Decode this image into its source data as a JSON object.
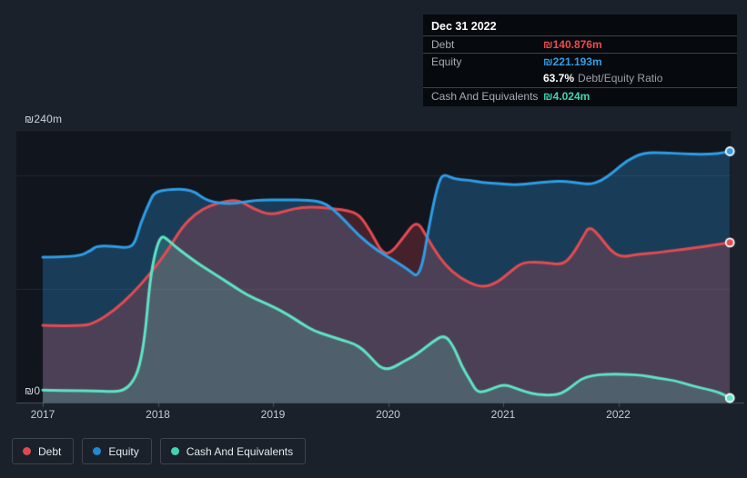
{
  "tooltip": {
    "date": "Dec 31 2022",
    "debt_label": "Debt",
    "debt_value": "₪140.876m",
    "equity_label": "Equity",
    "equity_value": "₪221.193m",
    "ratio_value": "63.7%",
    "ratio_label": "Debt/Equity Ratio",
    "cash_label": "Cash And Equivalents",
    "cash_value": "₪4.024m"
  },
  "y_axis": {
    "top_label": "₪240m",
    "zero_label": "₪0"
  },
  "legend": {
    "items": [
      {
        "label": "Debt",
        "color": "#dd4a4e"
      },
      {
        "label": "Equity",
        "color": "#2188d2"
      },
      {
        "label": "Cash And Equivalents",
        "color": "#41d2b2"
      }
    ]
  },
  "colors": {
    "debt_line": "#e24b51",
    "equity_line": "#2e9de6",
    "cash_line": "#5fe3c4",
    "plot_bg": "#10151e",
    "page_bg": "#1a212b",
    "grid": "rgba(255,255,255,0.08)",
    "axis": "rgba(160,170,185,0.35)"
  },
  "chart_data": {
    "type": "area",
    "title": "Debt to Equity History and Analysis",
    "x_ticks": [
      "2017",
      "2018",
      "2019",
      "2020",
      "2021",
      "2022"
    ],
    "x_range": [
      2017.0,
      2022.97
    ],
    "ylim": [
      0,
      240
    ],
    "y_unit": "₪m",
    "y_gridline_values": [
      240,
      200,
      100
    ],
    "grid": true,
    "legend_position": "bottom-left",
    "series": [
      {
        "name": "Equity",
        "color": "#2e9de6",
        "fill_alpha": 0.3,
        "end_label": "₪221.193m",
        "points": [
          [
            2017.0,
            128
          ],
          [
            2017.3,
            128
          ],
          [
            2017.42,
            134
          ],
          [
            2017.47,
            138
          ],
          [
            2017.62,
            137.5
          ],
          [
            2017.74,
            136
          ],
          [
            2017.8,
            140
          ],
          [
            2017.85,
            158
          ],
          [
            2017.93,
            177
          ],
          [
            2017.97,
            185
          ],
          [
            2018.07,
            187.5
          ],
          [
            2018.29,
            188
          ],
          [
            2018.43,
            177
          ],
          [
            2018.64,
            174.5
          ],
          [
            2018.84,
            178.5
          ],
          [
            2019.1,
            178.5
          ],
          [
            2019.32,
            178.5
          ],
          [
            2019.46,
            175.5
          ],
          [
            2019.59,
            164
          ],
          [
            2019.75,
            146.5
          ],
          [
            2019.91,
            133.5
          ],
          [
            2020.07,
            124
          ],
          [
            2020.19,
            116
          ],
          [
            2020.25,
            110.5
          ],
          [
            2020.3,
            122
          ],
          [
            2020.34,
            146
          ],
          [
            2020.4,
            178
          ],
          [
            2020.45,
            197
          ],
          [
            2020.49,
            201
          ],
          [
            2020.58,
            196.5
          ],
          [
            2020.7,
            196
          ],
          [
            2020.82,
            193.5
          ],
          [
            2020.96,
            193
          ],
          [
            2021.1,
            191.5
          ],
          [
            2021.25,
            193
          ],
          [
            2021.41,
            194.5
          ],
          [
            2021.53,
            195
          ],
          [
            2021.64,
            193.5
          ],
          [
            2021.75,
            192
          ],
          [
            2021.85,
            195
          ],
          [
            2021.96,
            203
          ],
          [
            2022.08,
            213.5
          ],
          [
            2022.22,
            220
          ],
          [
            2022.4,
            220
          ],
          [
            2022.56,
            219
          ],
          [
            2022.72,
            218.5
          ],
          [
            2022.86,
            219
          ],
          [
            2022.97,
            221.2
          ]
        ]
      },
      {
        "name": "Debt",
        "color": "#e24b51",
        "fill_alpha": 0.26,
        "end_label": "₪140.876m",
        "points": [
          [
            2017.0,
            68
          ],
          [
            2017.34,
            67
          ],
          [
            2017.46,
            70.5
          ],
          [
            2017.62,
            81
          ],
          [
            2017.78,
            96
          ],
          [
            2017.93,
            113
          ],
          [
            2018.09,
            134.5
          ],
          [
            2018.21,
            154.5
          ],
          [
            2018.33,
            166.5
          ],
          [
            2018.45,
            173.5
          ],
          [
            2018.58,
            177
          ],
          [
            2018.7,
            178.5
          ],
          [
            2018.83,
            170.5
          ],
          [
            2018.98,
            165
          ],
          [
            2019.12,
            169
          ],
          [
            2019.25,
            172
          ],
          [
            2019.41,
            172
          ],
          [
            2019.54,
            170.5
          ],
          [
            2019.65,
            169
          ],
          [
            2019.75,
            165.5
          ],
          [
            2019.85,
            150.5
          ],
          [
            2019.95,
            131
          ],
          [
            2020.03,
            132
          ],
          [
            2020.13,
            145
          ],
          [
            2020.25,
            161
          ],
          [
            2020.34,
            145
          ],
          [
            2020.45,
            127
          ],
          [
            2020.56,
            114.5
          ],
          [
            2020.7,
            105.5
          ],
          [
            2020.82,
            101.5
          ],
          [
            2020.94,
            105
          ],
          [
            2021.06,
            115
          ],
          [
            2021.16,
            123
          ],
          [
            2021.29,
            124
          ],
          [
            2021.41,
            122.5
          ],
          [
            2021.51,
            121.5
          ],
          [
            2021.59,
            128
          ],
          [
            2021.69,
            145
          ],
          [
            2021.75,
            156
          ],
          [
            2021.85,
            145
          ],
          [
            2021.94,
            133
          ],
          [
            2022.03,
            128
          ],
          [
            2022.16,
            130.5
          ],
          [
            2022.34,
            132
          ],
          [
            2022.56,
            135
          ],
          [
            2022.76,
            137.5
          ],
          [
            2022.97,
            140.9
          ]
        ]
      },
      {
        "name": "Cash And Equivalents",
        "color": "#5fe3c4",
        "fill_alpha": 0.2,
        "end_label": "₪4.024m",
        "points": [
          [
            2017.0,
            11
          ],
          [
            2017.26,
            10.5
          ],
          [
            2017.46,
            10.5
          ],
          [
            2017.59,
            9.5
          ],
          [
            2017.7,
            10.5
          ],
          [
            2017.78,
            17.5
          ],
          [
            2017.84,
            31
          ],
          [
            2017.89,
            60
          ],
          [
            2017.93,
            106.5
          ],
          [
            2017.98,
            134.5
          ],
          [
            2018.03,
            147
          ],
          [
            2018.08,
            144
          ],
          [
            2018.15,
            137.5
          ],
          [
            2018.24,
            130.5
          ],
          [
            2018.34,
            123
          ],
          [
            2018.44,
            116.5
          ],
          [
            2018.55,
            109.5
          ],
          [
            2018.67,
            101.5
          ],
          [
            2018.78,
            94.5
          ],
          [
            2018.9,
            89
          ],
          [
            2019.01,
            84
          ],
          [
            2019.13,
            77.5
          ],
          [
            2019.25,
            69.5
          ],
          [
            2019.36,
            63
          ],
          [
            2019.48,
            59
          ],
          [
            2019.6,
            55
          ],
          [
            2019.7,
            52
          ],
          [
            2019.78,
            47
          ],
          [
            2019.86,
            38.5
          ],
          [
            2019.93,
            31
          ],
          [
            2019.99,
            29.5
          ],
          [
            2020.05,
            31
          ],
          [
            2020.13,
            36
          ],
          [
            2020.21,
            40
          ],
          [
            2020.3,
            46.5
          ],
          [
            2020.38,
            53
          ],
          [
            2020.49,
            60
          ],
          [
            2020.57,
            49.5
          ],
          [
            2020.64,
            32
          ],
          [
            2020.72,
            18.5
          ],
          [
            2020.77,
            9.5
          ],
          [
            2020.84,
            9.5
          ],
          [
            2020.92,
            13
          ],
          [
            2021.01,
            16
          ],
          [
            2021.1,
            13
          ],
          [
            2021.19,
            9.5
          ],
          [
            2021.3,
            7
          ],
          [
            2021.42,
            6.5
          ],
          [
            2021.51,
            8
          ],
          [
            2021.6,
            14.5
          ],
          [
            2021.68,
            21
          ],
          [
            2021.78,
            24
          ],
          [
            2021.89,
            25
          ],
          [
            2022.05,
            25
          ],
          [
            2022.21,
            24
          ],
          [
            2022.34,
            21.5
          ],
          [
            2022.49,
            19.5
          ],
          [
            2022.63,
            15
          ],
          [
            2022.76,
            12
          ],
          [
            2022.88,
            9
          ],
          [
            2022.97,
            4.0
          ]
        ]
      }
    ]
  }
}
